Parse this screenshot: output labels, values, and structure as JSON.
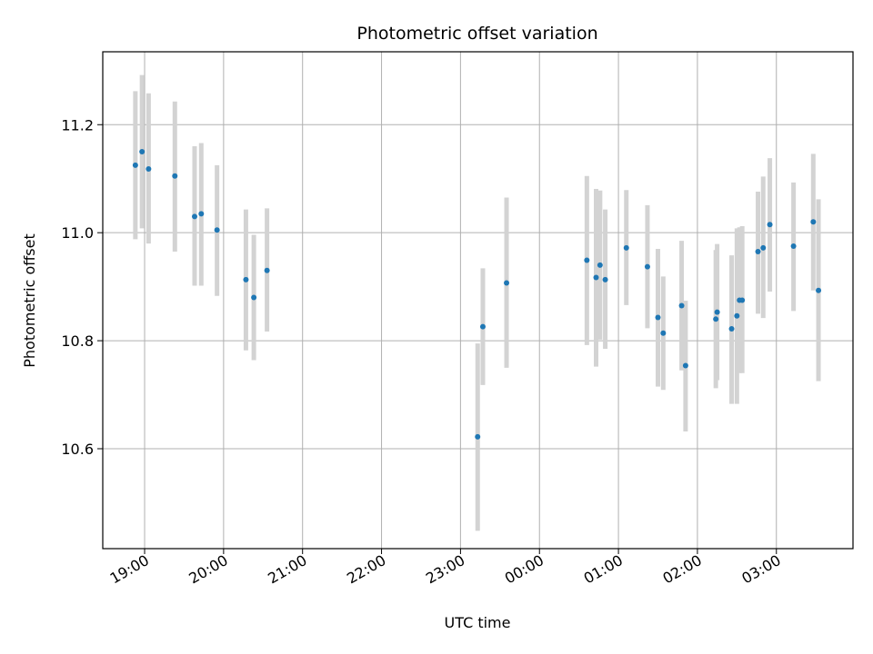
{
  "chart_data": {
    "type": "scatter",
    "title": "Photometric offset variation",
    "xlabel": "UTC time",
    "ylabel": "Photometric offset",
    "x_unit": "hours",
    "xlim": [
      18.47,
      27.97
    ],
    "ylim": [
      10.415,
      11.335
    ],
    "x_ticks": [
      {
        "value": 19,
        "label": "19:00"
      },
      {
        "value": 20,
        "label": "20:00"
      },
      {
        "value": 21,
        "label": "21:00"
      },
      {
        "value": 22,
        "label": "22:00"
      },
      {
        "value": 23,
        "label": "23:00"
      },
      {
        "value": 24,
        "label": "00:00"
      },
      {
        "value": 25,
        "label": "01:00"
      },
      {
        "value": 26,
        "label": "02:00"
      },
      {
        "value": 27,
        "label": "03:00"
      }
    ],
    "y_ticks": [
      {
        "value": 10.6,
        "label": "10.6"
      },
      {
        "value": 10.8,
        "label": "10.8"
      },
      {
        "value": 11.0,
        "label": "11.0"
      },
      {
        "value": 11.2,
        "label": "11.2"
      }
    ],
    "grid": true,
    "colors": {
      "point": "#1f77b4",
      "errorbar": "#d3d3d3",
      "grid": "#b0b0b0"
    },
    "points": [
      {
        "x": 18.883,
        "y": 11.125,
        "lo": 10.988,
        "hi": 11.262
      },
      {
        "x": 18.967,
        "y": 11.15,
        "lo": 11.008,
        "hi": 11.292
      },
      {
        "x": 19.05,
        "y": 11.118,
        "lo": 10.98,
        "hi": 11.258
      },
      {
        "x": 19.383,
        "y": 11.105,
        "lo": 10.965,
        "hi": 11.243
      },
      {
        "x": 19.633,
        "y": 11.03,
        "lo": 10.902,
        "hi": 11.16
      },
      {
        "x": 19.717,
        "y": 11.035,
        "lo": 10.902,
        "hi": 11.166
      },
      {
        "x": 19.917,
        "y": 11.005,
        "lo": 10.883,
        "hi": 11.125
      },
      {
        "x": 20.283,
        "y": 10.913,
        "lo": 10.782,
        "hi": 11.043
      },
      {
        "x": 20.383,
        "y": 10.88,
        "lo": 10.764,
        "hi": 10.996
      },
      {
        "x": 20.55,
        "y": 10.93,
        "lo": 10.817,
        "hi": 11.045
      },
      {
        "x": 23.217,
        "y": 10.622,
        "lo": 10.448,
        "hi": 10.795
      },
      {
        "x": 23.283,
        "y": 10.826,
        "lo": 10.718,
        "hi": 10.934
      },
      {
        "x": 23.583,
        "y": 10.907,
        "lo": 10.75,
        "hi": 11.065
      },
      {
        "x": 24.6,
        "y": 10.949,
        "lo": 10.792,
        "hi": 11.105
      },
      {
        "x": 24.717,
        "y": 10.917,
        "lo": 10.752,
        "hi": 11.081
      },
      {
        "x": 24.767,
        "y": 10.94,
        "lo": 10.802,
        "hi": 11.078
      },
      {
        "x": 24.833,
        "y": 10.913,
        "lo": 10.785,
        "hi": 11.043
      },
      {
        "x": 25.1,
        "y": 10.972,
        "lo": 10.866,
        "hi": 11.079
      },
      {
        "x": 25.367,
        "y": 10.937,
        "lo": 10.823,
        "hi": 11.051
      },
      {
        "x": 25.5,
        "y": 10.843,
        "lo": 10.715,
        "hi": 10.97
      },
      {
        "x": 25.567,
        "y": 10.814,
        "lo": 10.709,
        "hi": 10.919
      },
      {
        "x": 25.8,
        "y": 10.865,
        "lo": 10.745,
        "hi": 10.985
      },
      {
        "x": 25.85,
        "y": 10.754,
        "lo": 10.632,
        "hi": 10.874
      },
      {
        "x": 26.233,
        "y": 10.84,
        "lo": 10.712,
        "hi": 10.968
      },
      {
        "x": 26.25,
        "y": 10.853,
        "lo": 10.727,
        "hi": 10.979
      },
      {
        "x": 26.433,
        "y": 10.822,
        "lo": 10.683,
        "hi": 10.958
      },
      {
        "x": 26.5,
        "y": 10.846,
        "lo": 10.683,
        "hi": 11.008
      },
      {
        "x": 26.533,
        "y": 10.875,
        "lo": 10.74,
        "hi": 11.01
      },
      {
        "x": 26.567,
        "y": 10.875,
        "lo": 10.74,
        "hi": 11.012
      },
      {
        "x": 26.767,
        "y": 10.965,
        "lo": 10.85,
        "hi": 11.076
      },
      {
        "x": 26.833,
        "y": 10.972,
        "lo": 10.842,
        "hi": 11.104
      },
      {
        "x": 26.917,
        "y": 11.015,
        "lo": 10.891,
        "hi": 11.138
      },
      {
        "x": 27.217,
        "y": 10.975,
        "lo": 10.855,
        "hi": 11.093
      },
      {
        "x": 27.467,
        "y": 11.02,
        "lo": 10.893,
        "hi": 11.146
      },
      {
        "x": 27.533,
        "y": 10.893,
        "lo": 10.725,
        "hi": 11.062
      }
    ]
  }
}
